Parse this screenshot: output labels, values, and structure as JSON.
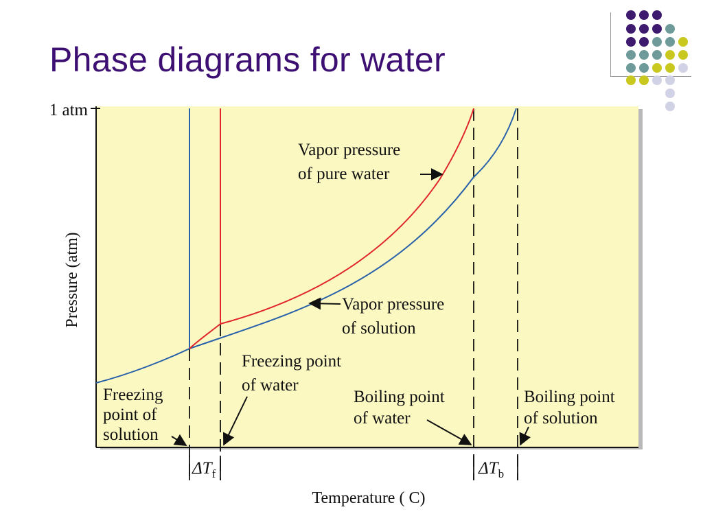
{
  "slide": {
    "title": "Phase diagrams for water"
  },
  "decoration": {
    "dot_colors": {
      "purple": "#3d1a6e",
      "teal": "#6e9a9a",
      "olive": "#c8c81e",
      "lavender": "#d2d2e6"
    }
  },
  "diagram": {
    "background_color": "#fbf8c2",
    "pure_water_color": "#e0262a",
    "solution_color": "#2860aa",
    "y_axis": {
      "title": "Pressure (atm)",
      "tick_label": "1 atm"
    },
    "x_axis": {
      "title": "Temperature ( C)"
    },
    "labels": {
      "vapor_pure_line1": "Vapor pressure",
      "vapor_pure_line2": "of pure water",
      "vapor_solution_line1": "Vapor pressure",
      "vapor_solution_line2": "of solution",
      "freezing_water_line1": "Freezing point",
      "freezing_water_line2": "of water",
      "freezing_solution_line1": "Freezing",
      "freezing_solution_line2": "point of",
      "freezing_solution_line3": "solution",
      "boiling_water_line1": "Boiling point",
      "boiling_water_line2": "of water",
      "boiling_solution_line1": "Boiling point",
      "boiling_solution_line2": "of solution"
    },
    "delta_tf": {
      "symbol": "ΔT",
      "subscript": "f"
    },
    "delta_tb": {
      "symbol": "ΔT",
      "subscript": "b"
    }
  }
}
